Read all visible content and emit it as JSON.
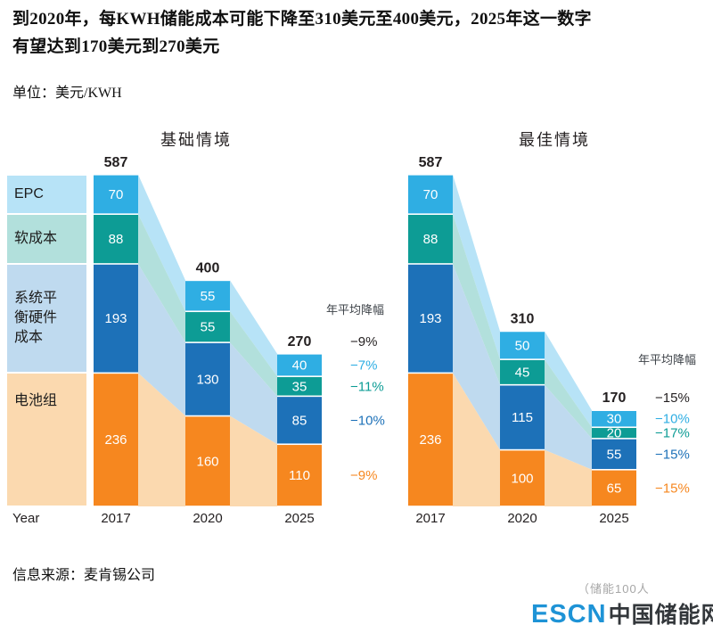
{
  "header": {
    "line1": "到2020年，每KWH储能成本可能下降至310美元至400美元，2025年这一数字",
    "line2": "有望达到170美元到270美元",
    "unit": "单位：美元/KWH"
  },
  "chart_data": {
    "type": "bar",
    "subtype": "stacked-bar-with-flow-bands",
    "unit": "美元/KWH",
    "categories": [
      "2017",
      "2020",
      "2025"
    ],
    "year_axis_label": "Year",
    "decline_header": "年平均降幅",
    "grid": "off",
    "legend_position": "left-column",
    "segments": [
      {
        "name": "EPC",
        "color": "#2FAEE3",
        "tint": "#B7E3F7"
      },
      {
        "name": "软成本",
        "color": "#0D9C95",
        "tint": "#B2E0DC"
      },
      {
        "name": "系统平衡硬件成本",
        "color": "#1D71B8",
        "tint": "#BFDAEF"
      },
      {
        "name": "电池组",
        "color": "#F6871F",
        "tint": "#FBD9AF"
      }
    ],
    "panels": [
      {
        "title": "基础情境",
        "totals": [
          587,
          400,
          270
        ],
        "total_avg_decline": "−9%",
        "series": [
          {
            "name": "EPC",
            "values": [
              70,
              55,
              40
            ],
            "avg_decline": "−7%"
          },
          {
            "name": "软成本",
            "values": [
              88,
              55,
              35
            ],
            "avg_decline": "−11%"
          },
          {
            "name": "系统平衡硬件成本",
            "values": [
              193,
              130,
              85
            ],
            "avg_decline": "−10%"
          },
          {
            "name": "电池组",
            "values": [
              236,
              160,
              110
            ],
            "avg_decline": "−9%"
          }
        ]
      },
      {
        "title": "最佳情境",
        "totals": [
          587,
          310,
          170
        ],
        "total_avg_decline": "−15%",
        "series": [
          {
            "name": "EPC",
            "values": [
              70,
              50,
              30
            ],
            "avg_decline": "−10%"
          },
          {
            "name": "软成本",
            "values": [
              88,
              45,
              20
            ],
            "avg_decline": "−17%"
          },
          {
            "name": "系统平衡硬件成本",
            "values": [
              193,
              115,
              55
            ],
            "avg_decline": "−15%"
          },
          {
            "name": "电池组",
            "values": [
              236,
              100,
              65
            ],
            "avg_decline": "−15%"
          }
        ]
      }
    ]
  },
  "footer": {
    "source": "信息来源：麦肯锡公司",
    "watermark": "（储能100人",
    "logo_escn": "ESCN",
    "logo_site": "中国储能网"
  }
}
